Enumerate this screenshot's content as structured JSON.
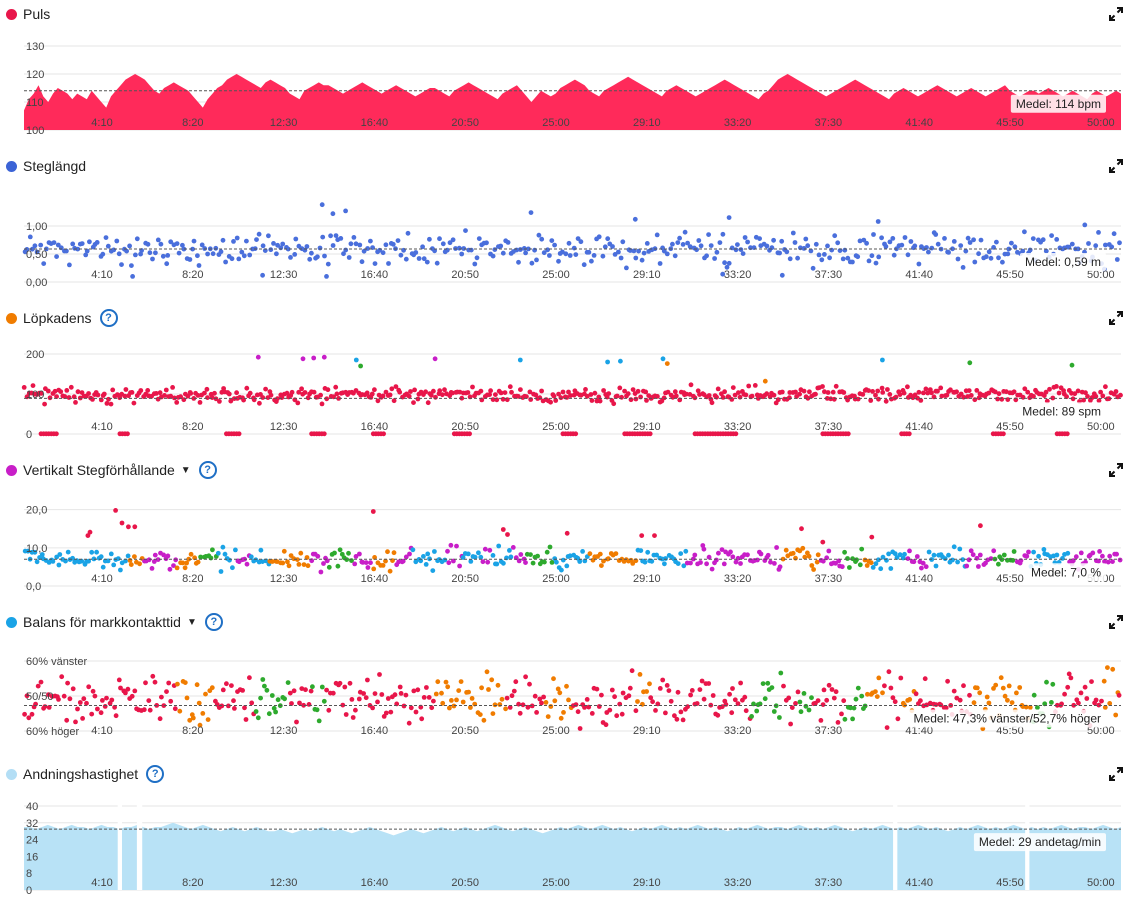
{
  "panels": [
    {
      "id": "heart-rate",
      "title": "Puls",
      "dot_color": "#e8164a",
      "help": false,
      "dropdown": false,
      "avg_label": "Medel: 114 bpm",
      "chart_data": {
        "type": "area",
        "color": "#ff2a5a",
        "ylim": [
          100,
          130
        ],
        "yticks": [
          "130",
          "120",
          "110",
          "100"
        ],
        "ytick_values": [
          130,
          120,
          110,
          100
        ],
        "avg_value": 114,
        "x_labels": [
          "4:10",
          "8:20",
          "12:30",
          "16:40",
          "20:50",
          "25:00",
          "29:10",
          "33:20",
          "37:30",
          "41:40",
          "45:50",
          "50:00"
        ],
        "x_max_min": 51.5,
        "series": [
          {
            "values": [
              107,
              111,
              113,
              116,
              112,
              110,
              113,
              115,
              114,
              113,
              111,
              113,
              112,
              111,
              114,
              112,
              110,
              108,
              112,
              114,
              116,
              118,
              119,
              120,
              119,
              118,
              116,
              114,
              113,
              115,
              116,
              117,
              116,
              115,
              114,
              112,
              110,
              108,
              111,
              113,
              115,
              116,
              118,
              119,
              120,
              119,
              118,
              117,
              116,
              115,
              117,
              118,
              117,
              116,
              115,
              113,
              112,
              111,
              114,
              115,
              116,
              117,
              116,
              116,
              115,
              114,
              113,
              114,
              115,
              116,
              117,
              116,
              115,
              114,
              113,
              114,
              115,
              116,
              115,
              114,
              113,
              112,
              113,
              114,
              115,
              115,
              114,
              113,
              112,
              114,
              115,
              116,
              117,
              116,
              115,
              114,
              113,
              112,
              111,
              113,
              114,
              115,
              116,
              114,
              112,
              110,
              112,
              114,
              113,
              112,
              113,
              115,
              116,
              117,
              118,
              117,
              116,
              114,
              113,
              112,
              114,
              115,
              116,
              117,
              118,
              119,
              118,
              117,
              116,
              115,
              114,
              113,
              112,
              114,
              115,
              116,
              115,
              114,
              113,
              112,
              113,
              114,
              115,
              116,
              117,
              118,
              117,
              116,
              115,
              114,
              113,
              112,
              111,
              113,
              114,
              116,
              118,
              119,
              120,
              119,
              118,
              117,
              116,
              115,
              114,
              113,
              112,
              113,
              114,
              115,
              116,
              117,
              118,
              117,
              116,
              115,
              114,
              113,
              112,
              111,
              113,
              114,
              115,
              114,
              113,
              112,
              113,
              114,
              115,
              116,
              115,
              114,
              113,
              112,
              113,
              114,
              115,
              114,
              113,
              112,
              113,
              114,
              115,
              116,
              114,
              113,
              112,
              113,
              114,
              114,
              113,
              114,
              115,
              114,
              113,
              112,
              113,
              114,
              113,
              112,
              111,
              113,
              114,
              113,
              112,
              113,
              114,
              113
            ]
          }
        ]
      }
    },
    {
      "id": "stride-length",
      "title": "Steglängd",
      "dot_color": "#3b63d6",
      "help": false,
      "dropdown": false,
      "avg_label": "Medel: 0,59 m",
      "chart_data": {
        "type": "scatter",
        "color": "#4a6fdc",
        "ylim": [
          0,
          1.5
        ],
        "yticks": [
          "1,00",
          "0,50",
          "0,00"
        ],
        "ytick_values": [
          1.0,
          0.5,
          0.0
        ],
        "avg_value": 0.59,
        "x_labels": [
          "4:10",
          "8:20",
          "12:30",
          "16:40",
          "20:50",
          "25:00",
          "29:10",
          "33:20",
          "37:30",
          "41:40",
          "45:50",
          "50:00"
        ],
        "x_max_min": 51.5,
        "seed": 11,
        "n_points": 420,
        "center": 0.59,
        "spread": 0.22,
        "outliers": [
          [
            14.0,
            1.38
          ],
          [
            14.5,
            1.22
          ],
          [
            15.1,
            1.27
          ],
          [
            23.8,
            1.24
          ],
          [
            28.7,
            1.12
          ],
          [
            33.1,
            1.15
          ],
          [
            40.1,
            1.08
          ],
          [
            49.8,
            1.02
          ],
          [
            5.1,
            0.1
          ],
          [
            11.2,
            0.12
          ],
          [
            14.2,
            0.1
          ],
          [
            32.8,
            0.14
          ],
          [
            35.6,
            0.12
          ]
        ],
        "series": [
          {
            "name": "",
            "color": "#4a6fdc"
          }
        ]
      }
    },
    {
      "id": "cadence",
      "title": "Löpkadens",
      "dot_color": "#f07c00",
      "help": true,
      "dropdown": false,
      "avg_label": "Medel: 89 spm",
      "chart_data": {
        "type": "scatter",
        "ylim": [
          0,
          210
        ],
        "yticks": [
          "200",
          "100",
          "0"
        ],
        "ytick_values": [
          200,
          100,
          0
        ],
        "avg_value": 89,
        "x_labels": [
          "4:10",
          "8:20",
          "12:30",
          "16:40",
          "20:50",
          "25:00",
          "29:10",
          "33:20",
          "37:30",
          "41:40",
          "45:50",
          "50:00"
        ],
        "x_max_min": 51.5,
        "seed": 23,
        "n_points": 520,
        "center": 98,
        "spread": 16,
        "zero_runs": [
          [
            0.8,
            1.6
          ],
          [
            4.5,
            4.9
          ],
          [
            9.5,
            10.2
          ],
          [
            13.5,
            14.2
          ],
          [
            16.4,
            17.0
          ],
          [
            20.2,
            21.0
          ],
          [
            25.3,
            26.0
          ],
          [
            28.2,
            29.5
          ],
          [
            31.5,
            33.5
          ],
          [
            37.5,
            38.8
          ],
          [
            41.2,
            41.6
          ],
          [
            45.5,
            46.0
          ],
          [
            48.5,
            49.0
          ]
        ],
        "outliers": [
          [
            11.0,
            192,
            "#c81ec8"
          ],
          [
            13.1,
            188,
            "#c81ec8"
          ],
          [
            13.6,
            190,
            "#c81ec8"
          ],
          [
            14.1,
            192,
            "#c81ec8"
          ],
          [
            19.3,
            188,
            "#c81ec8"
          ],
          [
            15.6,
            185,
            "#1aa3e6"
          ],
          [
            15.8,
            170,
            "#2eaa2e"
          ],
          [
            23.3,
            185,
            "#1aa3e6"
          ],
          [
            27.4,
            180,
            "#1aa3e6"
          ],
          [
            28.0,
            182,
            "#1aa3e6"
          ],
          [
            30.0,
            188,
            "#1aa3e6"
          ],
          [
            30.2,
            176,
            "#f07c00"
          ],
          [
            40.3,
            185,
            "#1aa3e6"
          ],
          [
            44.4,
            178,
            "#2eaa2e"
          ],
          [
            49.2,
            172,
            "#2eaa2e"
          ],
          [
            34.8,
            132,
            "#f07c00"
          ]
        ],
        "series": [
          {
            "name": "",
            "color": "#e8164a"
          }
        ]
      }
    },
    {
      "id": "vertical-ratio",
      "title": "Vertikalt Stegförhållande",
      "dot_color": "#c81ec8",
      "help": true,
      "dropdown": true,
      "avg_label": "Medel: 7,0 %",
      "chart_data": {
        "type": "scatter",
        "ylim": [
          0,
          22
        ],
        "yticks": [
          "20,0",
          "10,0",
          "0,0"
        ],
        "ytick_values": [
          20,
          10,
          0
        ],
        "avg_value": 7.0,
        "x_labels": [
          "4:10",
          "8:20",
          "12:30",
          "16:40",
          "20:50",
          "25:00",
          "29:10",
          "33:20",
          "37:30",
          "41:40",
          "45:50",
          "50:00"
        ],
        "x_max_min": 51.5,
        "seed": 37,
        "n_points": 460,
        "center": 7,
        "spread": 2.2,
        "palette": [
          "#1aa3e6",
          "#c81ec8",
          "#2eaa2e",
          "#f07c00",
          "#1aa3e6",
          "#c81ec8"
        ],
        "outliers": [
          [
            3.0,
            13.2,
            "#e8164a"
          ],
          [
            3.1,
            14.1,
            "#e8164a"
          ],
          [
            4.3,
            19.8,
            "#e8164a"
          ],
          [
            4.6,
            16.5,
            "#e8164a"
          ],
          [
            4.9,
            15.5,
            "#e8164a"
          ],
          [
            5.2,
            15.5,
            "#e8164a"
          ],
          [
            16.4,
            19.5,
            "#e8164a"
          ],
          [
            22.5,
            14.8,
            "#e8164a"
          ],
          [
            22.7,
            13.5,
            "#e8164a"
          ],
          [
            25.5,
            13.8,
            "#e8164a"
          ],
          [
            29.0,
            13.2,
            "#e8164a"
          ],
          [
            29.6,
            13.2,
            "#e8164a"
          ],
          [
            36.5,
            15.0,
            "#e8164a"
          ],
          [
            37.5,
            11.5,
            "#e8164a"
          ],
          [
            39.8,
            12.8,
            "#e8164a"
          ],
          [
            44.9,
            15.8,
            "#e8164a"
          ]
        ],
        "series": [
          {
            "name": "",
            "color": "#c81ec8"
          }
        ]
      }
    },
    {
      "id": "gct-balance",
      "title": "Balans för markkontakttid",
      "dot_color": "#1aa3e6",
      "help": true,
      "dropdown": true,
      "avg_label": "Medel: 47,3% vänster/52,7% höger",
      "chart_data": {
        "type": "scatter",
        "ylim": [
          -12,
          12
        ],
        "yticks": [
          "60% vänster",
          "50/50",
          "60% höger"
        ],
        "ytick_values": [
          10,
          0,
          -10
        ],
        "avg_value": -2.7,
        "x_labels": [
          "4:10",
          "8:20",
          "12:30",
          "16:40",
          "20:50",
          "25:00",
          "29:10",
          "33:20",
          "37:30",
          "41:40",
          "45:50",
          "50:00"
        ],
        "x_max_min": 51.5,
        "seed": 53,
        "n_points": 480,
        "center": -1,
        "spread": 5.5,
        "palette": [
          "#e8164a",
          "#f07c00",
          "#2eaa2e",
          "#e8164a",
          "#e8164a"
        ],
        "series": [
          {
            "name": "",
            "color": "#e8164a"
          }
        ]
      }
    },
    {
      "id": "respiration",
      "title": "Andningshastighet",
      "dot_color": "#b3def5",
      "help": true,
      "dropdown": false,
      "avg_label": "Medel: 29 andetag/min",
      "chart_data": {
        "type": "area",
        "color": "#b8e2f6",
        "ylim": [
          0,
          40
        ],
        "yticks": [
          "40",
          "32",
          "24",
          "16",
          "8",
          "0"
        ],
        "ytick_values": [
          40,
          32,
          24,
          16,
          8,
          0
        ],
        "avg_value": 29,
        "x_labels": [
          "4:10",
          "8:20",
          "12:30",
          "16:40",
          "20:50",
          "25:00",
          "29:10",
          "33:20",
          "37:30",
          "41:40",
          "45:50",
          "50:00"
        ],
        "x_max_min": 51.5,
        "gaps": [
          [
            4.4,
            4.6
          ],
          [
            5.3,
            5.55
          ],
          [
            40.8,
            41.0
          ],
          [
            47.0,
            47.2
          ]
        ],
        "series": [
          {
            "values": [
              30,
              30,
              29,
              30,
              31,
              30,
              29,
              30,
              31,
              30,
              30,
              29,
              30,
              31,
              30,
              30,
              29,
              30,
              30,
              31,
              30,
              29,
              30,
              30,
              31,
              32,
              31,
              30,
              29,
              30,
              31,
              30,
              29,
              28,
              29,
              30,
              29,
              28,
              29,
              30,
              29,
              28,
              28,
              29,
              28,
              27,
              28,
              29,
              28,
              29,
              30,
              29,
              28,
              29,
              28,
              27,
              28,
              29,
              30,
              29,
              28,
              27,
              26,
              27,
              28,
              29,
              28,
              27,
              28,
              29,
              30,
              29,
              28,
              29,
              30,
              29,
              28,
              29,
              30,
              31,
              30,
              29,
              28,
              29,
              30,
              29,
              28,
              27,
              28,
              29,
              30,
              29,
              30,
              31,
              30,
              29,
              30,
              31,
              30,
              29,
              30,
              29,
              28,
              29,
              30,
              29,
              30,
              31,
              30,
              29,
              30,
              29,
              30,
              31,
              30,
              29,
              30,
              29,
              28,
              29,
              30,
              29,
              30,
              31,
              30,
              29,
              30,
              30,
              29,
              30,
              31,
              30,
              29,
              30,
              29,
              30,
              31,
              30,
              29,
              28,
              29,
              30,
              29,
              30,
              31,
              30,
              29,
              30,
              29,
              30,
              31,
              30,
              29,
              30,
              29,
              28,
              29,
              30,
              29,
              30,
              31,
              30,
              29,
              30,
              29,
              30,
              31,
              30,
              29,
              30,
              29,
              30,
              29,
              30,
              31,
              30,
              29,
              30,
              30,
              29,
              30,
              31,
              30,
              29,
              30
            ]
          }
        ]
      }
    }
  ],
  "icons": {
    "expand": "expand-icon",
    "help": "?",
    "caret": "▼"
  }
}
